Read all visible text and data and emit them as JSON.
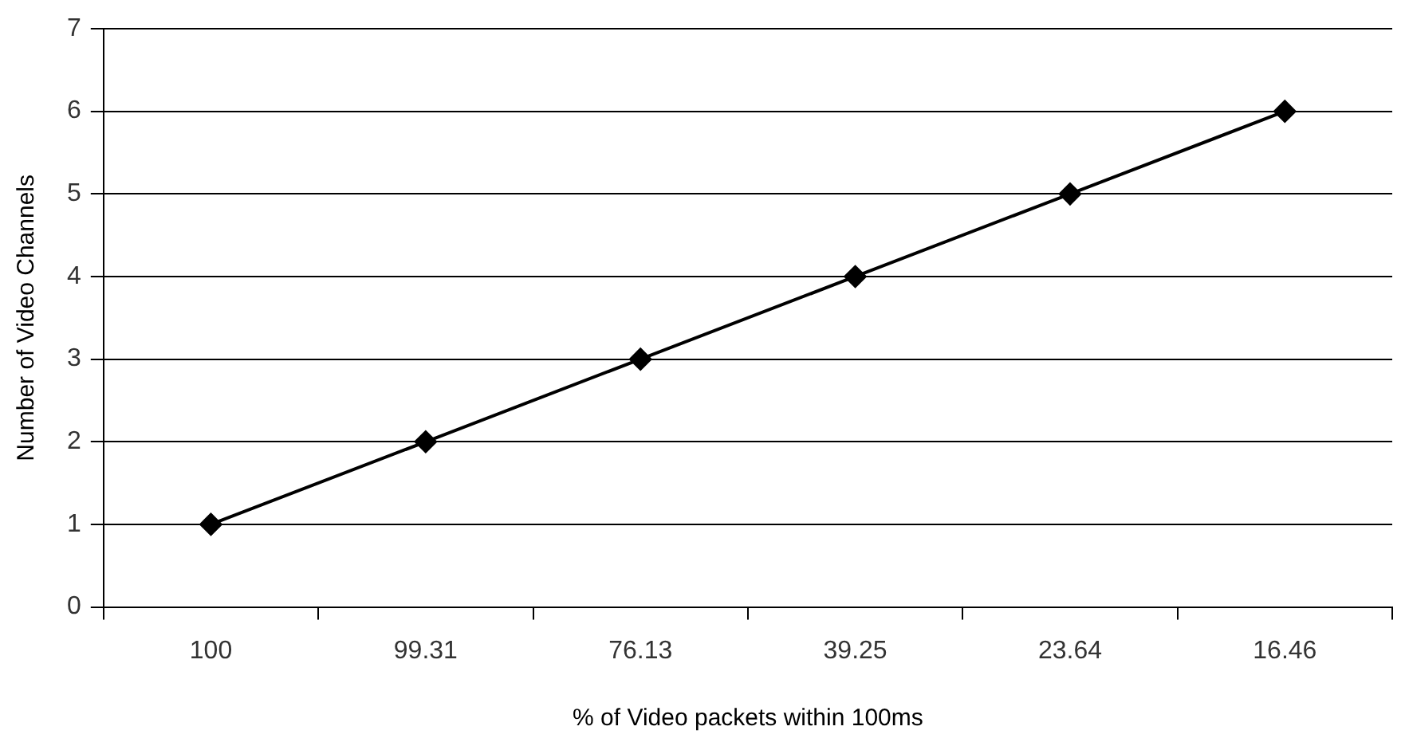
{
  "chart_data": {
    "type": "line",
    "xlabel": "% of Video packets within 100ms",
    "ylabel": "Number of Video Channels",
    "categories": [
      "100",
      "99.31",
      "76.13",
      "39.25",
      "23.64",
      "16.46"
    ],
    "series": [
      {
        "color": "#000000",
        "values": [
          1,
          2,
          3,
          4,
          5,
          6
        ]
      }
    ],
    "ylim": [
      0,
      7
    ],
    "yticks": [
      0,
      1,
      2,
      3,
      4,
      5,
      6,
      7
    ],
    "grid": "y",
    "legend": false,
    "marker": "diamond",
    "line_style": "solid"
  }
}
